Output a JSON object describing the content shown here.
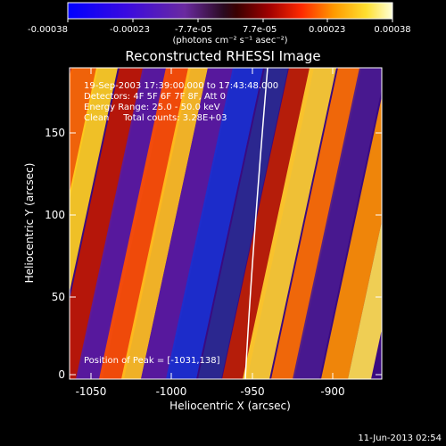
{
  "colorbar": {
    "tick_labels": [
      "-0.00038",
      "-0.00023",
      "-7.7e-05",
      "7.7e-05",
      "0.00023",
      "0.00038"
    ],
    "units_label": "(photons cm⁻² s⁻¹ asec⁻²)"
  },
  "title": "Reconstructed RHESSI Image",
  "info": {
    "line1": "19-Sep-2003 17:39:00.000 to 17:43:48.000",
    "line2": "Detectors: 4F 5F 6F 7F 8F, Att 0",
    "line3": "Energy Range: 25.0 - 50.0 keV",
    "line4": "Clean     Total counts: 3.28E+03"
  },
  "peak_label": "Position of Peak = [-1031,138]",
  "axes": {
    "xlabel": "Heliocentric X (arcsec)",
    "ylabel": "Heliocentric Y (arcsec)",
    "x_ticks": [
      "-1050",
      "-1000",
      "-950",
      "-900"
    ],
    "y_ticks": [
      "0",
      "50",
      "100",
      "150"
    ],
    "xlim": [
      -1067,
      -874
    ],
    "ylim": [
      -3,
      187
    ]
  },
  "timestamp": "11-Jun-2013 02:54",
  "colors": {
    "background": "#000000",
    "text": "#ffffff",
    "limb_line": "#ffffff"
  }
}
